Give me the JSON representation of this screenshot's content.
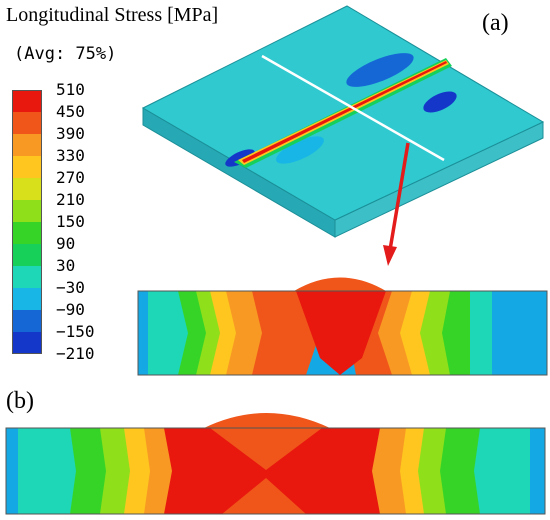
{
  "title": "Longitudinal Stress [MPa]",
  "avg_label": "(Avg: 75%)",
  "panel_a_label": "(a)",
  "panel_b_label": "(b)",
  "legend": {
    "ticks": [
      "510",
      "450",
      "390",
      "330",
      "270",
      "210",
      "150",
      "90",
      "30",
      "−30",
      "−90",
      "−150",
      "−210"
    ],
    "colors": [
      "#e8180f",
      "#f0561a",
      "#f89924",
      "#ffc61f",
      "#d8e01c",
      "#8fe01a",
      "#37d428",
      "#16d05a",
      "#1dd7b6",
      "#18b6e6",
      "#1567d6",
      "#1437c9",
      "#0d0fd7"
    ]
  },
  "colors": {
    "plate_top": "#2fc9cf",
    "plate_edge": "#27a9b5",
    "cut_line": "#ffffff",
    "arrow": "#e31b1b",
    "background_blue": "#14a9e4"
  }
}
